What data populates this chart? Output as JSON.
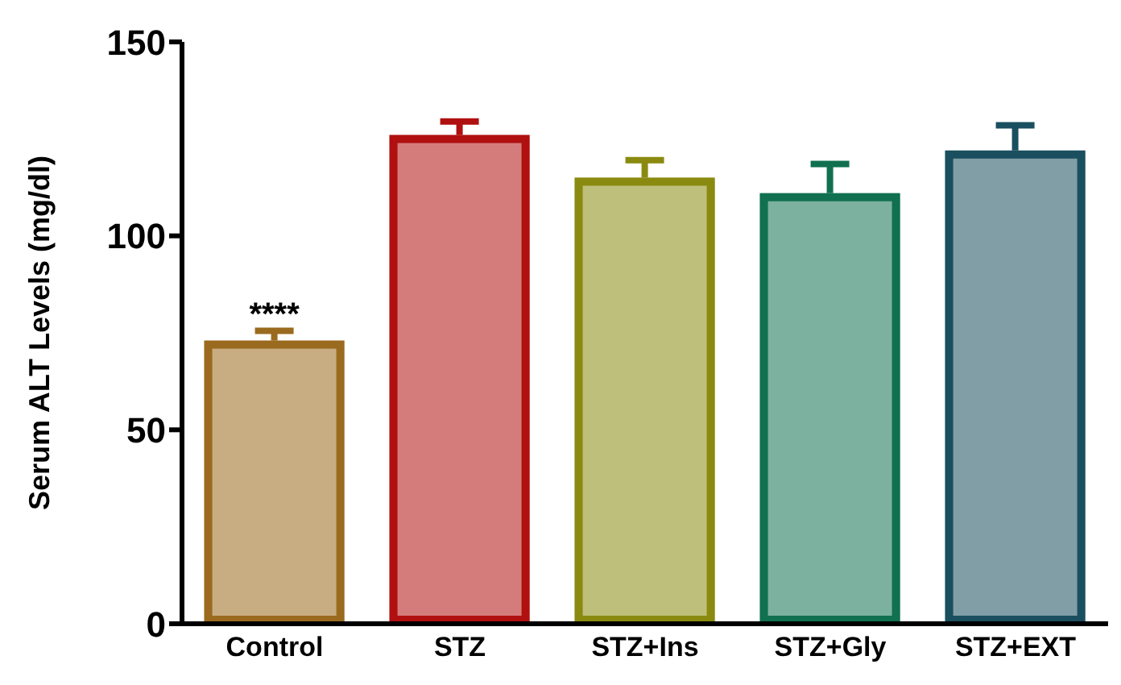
{
  "chart_data": {
    "type": "bar",
    "ylabel": "Serum ALT Levels (mg/dl)",
    "categories": [
      "Control",
      "STZ",
      "STZ+Ins",
      "STZ+Gly",
      "STZ+EXT"
    ],
    "values": [
      73,
      126,
      115,
      111,
      122
    ],
    "colors": [
      "#9a6a1e",
      "#b01010",
      "#8a8a10",
      "#107050",
      "#1a4f5f"
    ],
    "errors": [
      [
        73,
        75.5
      ],
      [
        126,
        129.5
      ],
      [
        115,
        119.5
      ],
      [
        111,
        118.5
      ],
      [
        122,
        128.5
      ]
    ],
    "ylim": [
      0,
      150
    ],
    "yticks": [
      0,
      50,
      100,
      150
    ],
    "grid": false,
    "annotations": [
      {
        "text": "****",
        "x": "Control",
        "y": 75.5
      }
    ]
  }
}
